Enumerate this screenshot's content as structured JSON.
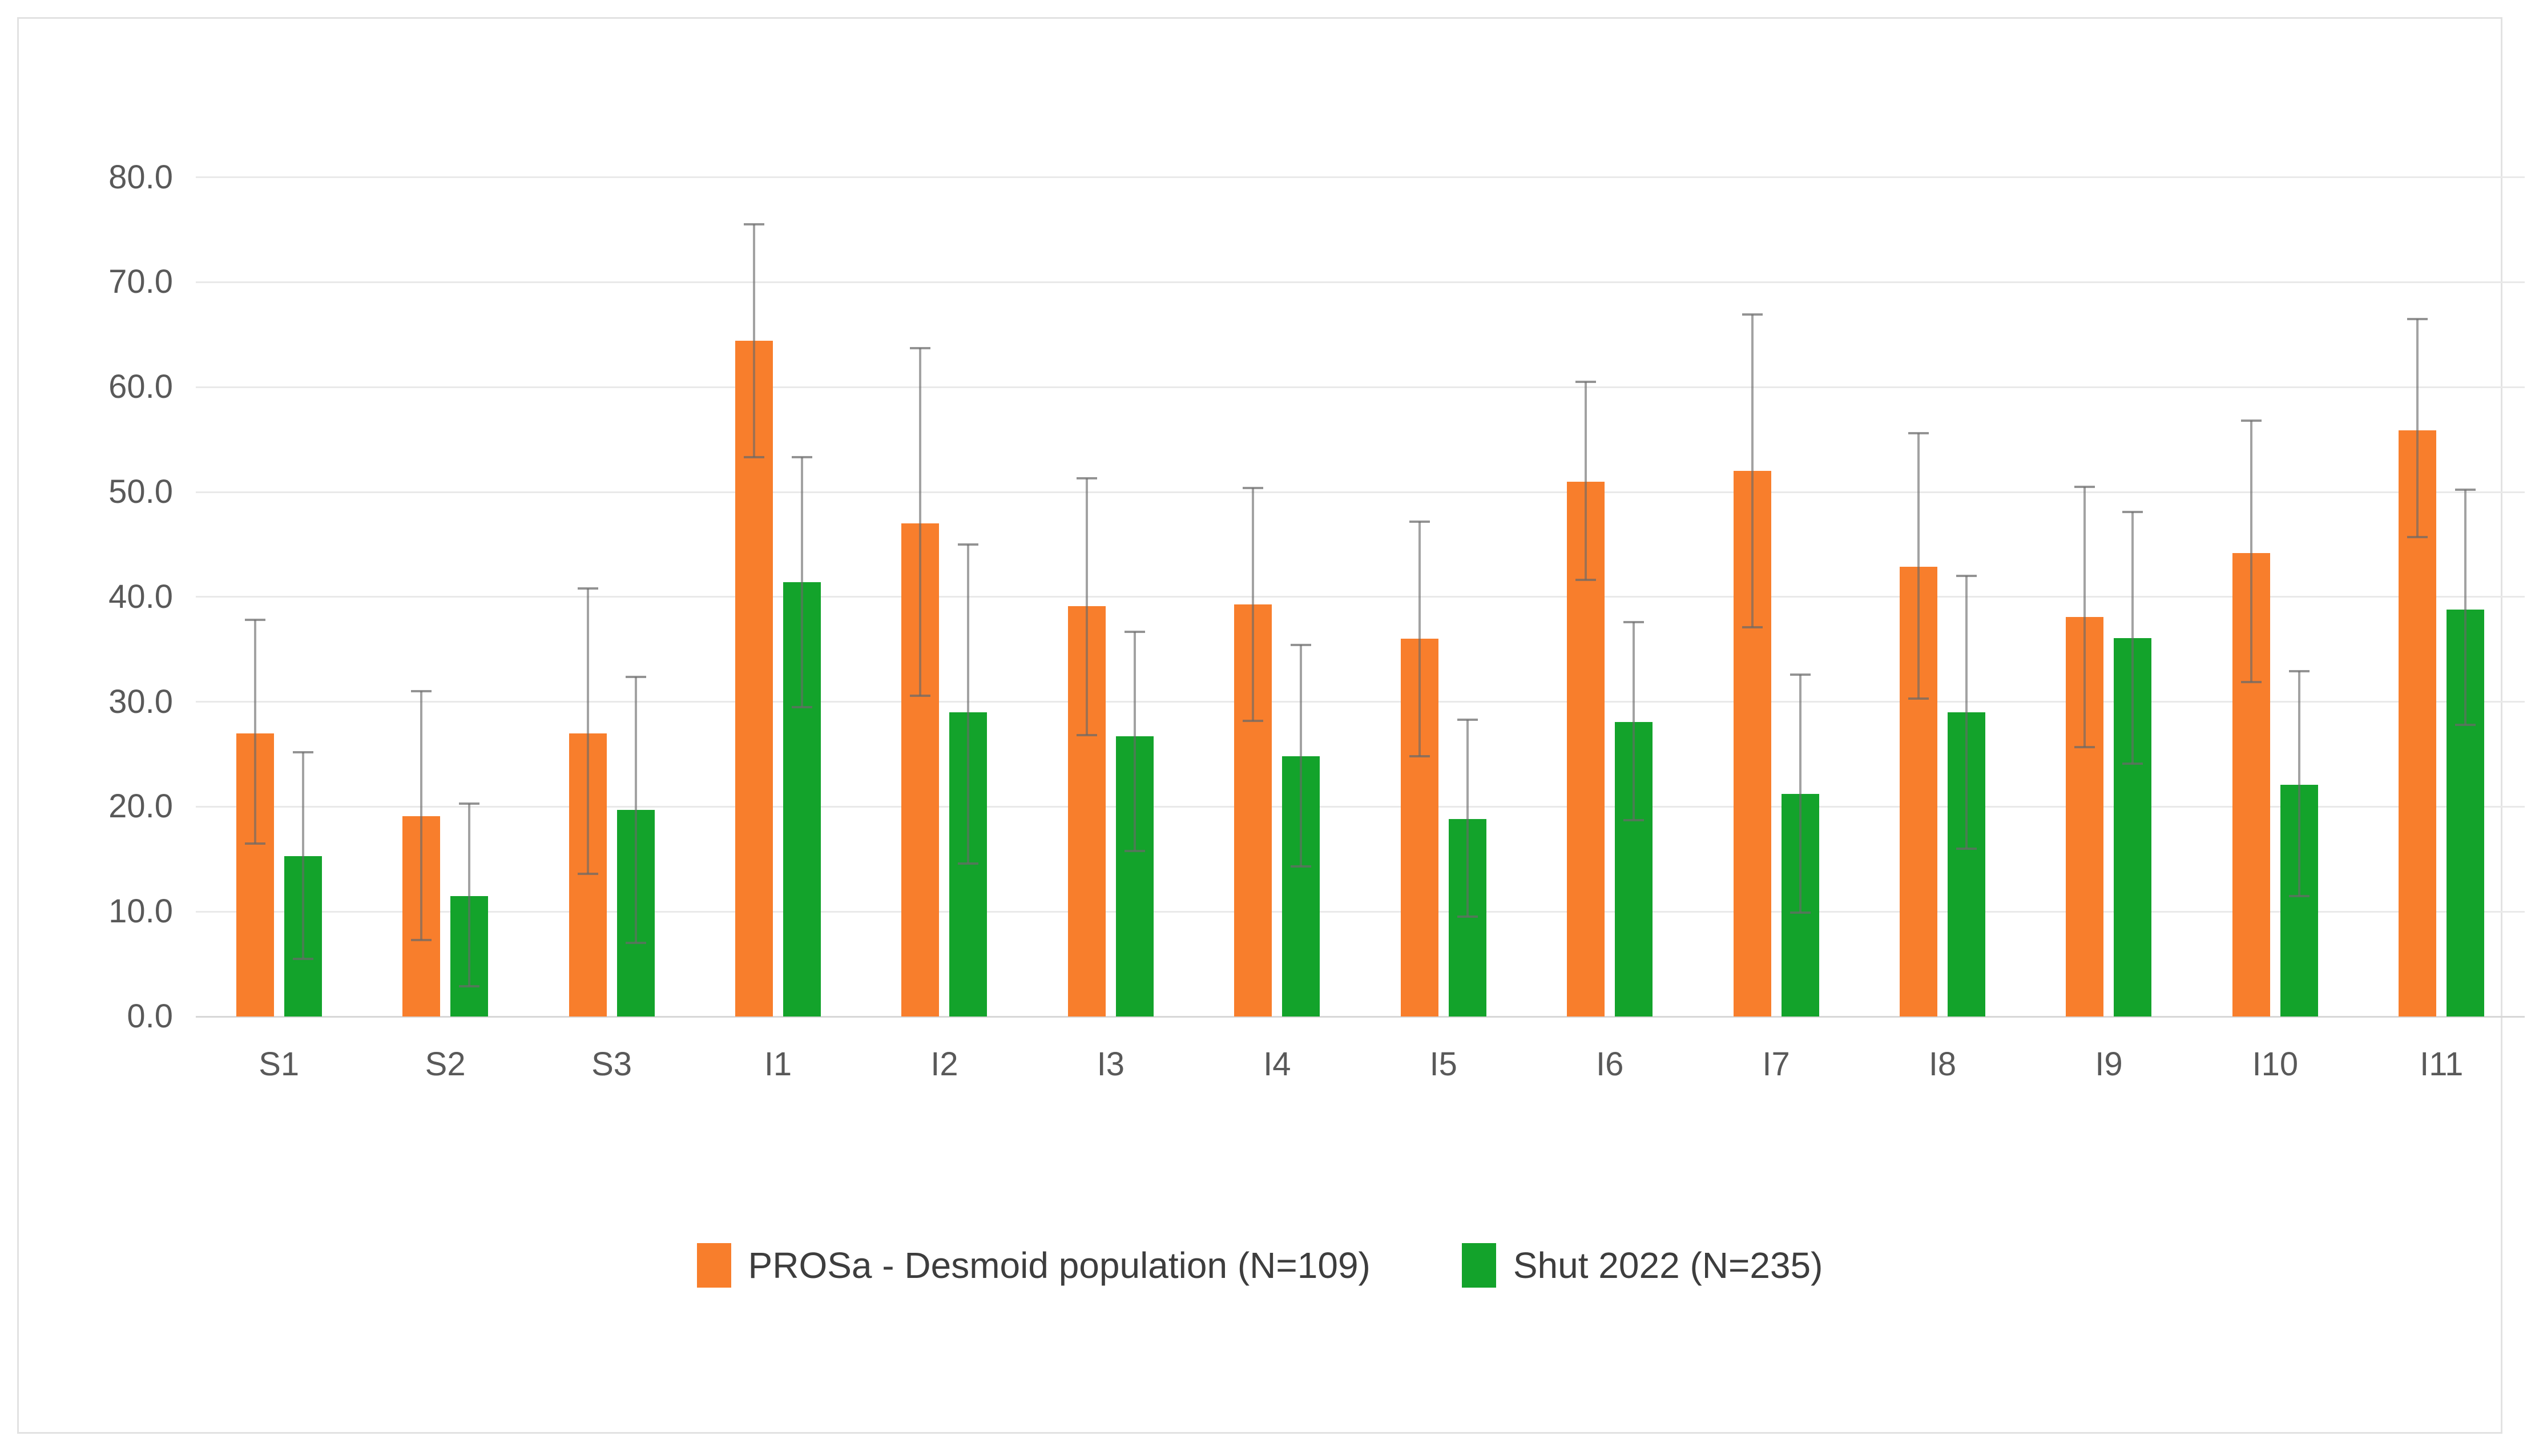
{
  "chart_data": {
    "type": "bar",
    "title": "",
    "xlabel": "",
    "ylabel": "",
    "categories": [
      "S1",
      "S2",
      "S3",
      "I1",
      "I2",
      "I3",
      "I4",
      "I5",
      "I6",
      "I7",
      "I8",
      "I9",
      "I10",
      "I11"
    ],
    "series": [
      {
        "name": "PROSa - Desmoid population (N=109)",
        "color": "#f87e2c",
        "values": [
          27.0,
          19.1,
          27.0,
          64.4,
          47.0,
          39.1,
          39.3,
          36.0,
          51.0,
          52.0,
          42.9,
          38.1,
          44.2,
          55.9
        ],
        "error_low": [
          16.5,
          7.3,
          13.6,
          53.3,
          30.6,
          26.8,
          28.2,
          24.8,
          41.6,
          37.1,
          30.3,
          25.7,
          31.9,
          45.7
        ],
        "error_high": [
          37.8,
          31.0,
          40.8,
          75.5,
          63.7,
          51.3,
          50.4,
          47.2,
          60.5,
          66.9,
          55.6,
          50.5,
          56.8,
          66.5
        ]
      },
      {
        "name": "Shut 2022 (N=235)",
        "color": "#13a32b",
        "values": [
          15.3,
          11.5,
          19.7,
          41.4,
          29.0,
          26.7,
          24.8,
          18.8,
          28.1,
          21.2,
          29.0,
          36.1,
          22.1,
          38.8
        ],
        "error_low": [
          5.5,
          2.9,
          7.0,
          29.5,
          14.6,
          15.8,
          14.3,
          9.5,
          18.7,
          9.9,
          16.0,
          24.1,
          11.5,
          27.8
        ],
        "error_high": [
          25.2,
          20.3,
          32.4,
          53.3,
          45.0,
          36.7,
          35.4,
          28.3,
          37.6,
          32.6,
          42.0,
          48.1,
          32.9,
          50.2
        ]
      }
    ],
    "yticks": [
      "0.0",
      "10.0",
      "20.0",
      "30.0",
      "40.0",
      "50.0",
      "60.0",
      "70.0",
      "80.0"
    ],
    "ylim": [
      0,
      84.5
    ],
    "grid": true,
    "legend_position": "bottom",
    "error_bars": true,
    "colors": {
      "gridline": "#e9e9e9",
      "axis_line": "#d7d7d7",
      "error_bar": "#696969",
      "tick_text": "#595959",
      "legend_text": "#3d3d3d",
      "frame_border": "#e2e2e2",
      "background": "#ffffff"
    }
  }
}
